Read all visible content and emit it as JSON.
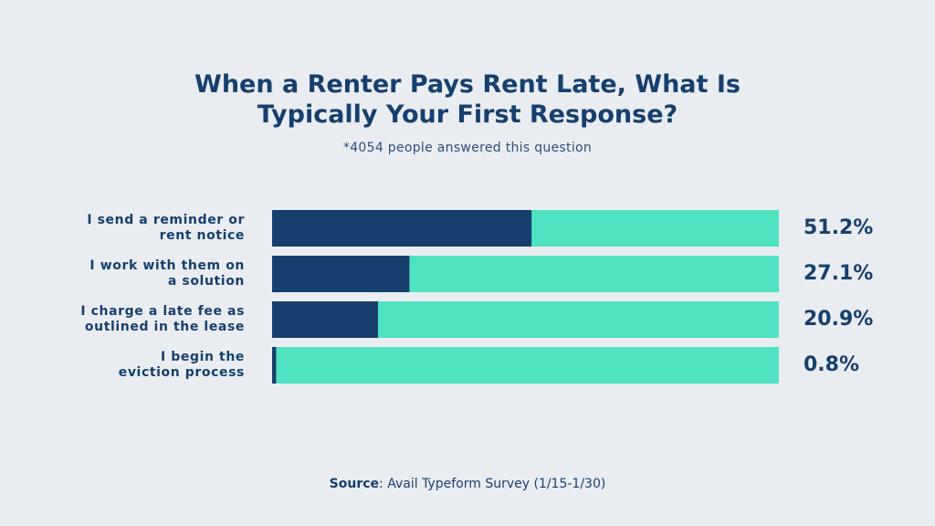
{
  "chart_data": {
    "type": "bar",
    "orientation": "horizontal",
    "title": "When a Renter Pays Rent Late, What Is Typically Your First Response?",
    "subtitle": "*4054 people answered this question",
    "categories": [
      "I send a reminder or\nrent notice",
      "I work with them on\na solution",
      "I charge a late fee as\noutlined in the lease",
      "I begin the\neviction process"
    ],
    "values": [
      51.2,
      27.1,
      20.9,
      0.8
    ],
    "value_labels": [
      "51.2%",
      "27.1%",
      "20.9%",
      "0.8%"
    ],
    "color": "#173f6e",
    "track_color": "#50e3c2",
    "xlim": [
      0,
      100
    ],
    "source_label": "Source",
    "source_text": ": Avail Typeform Survey (1/15-1/30)"
  }
}
